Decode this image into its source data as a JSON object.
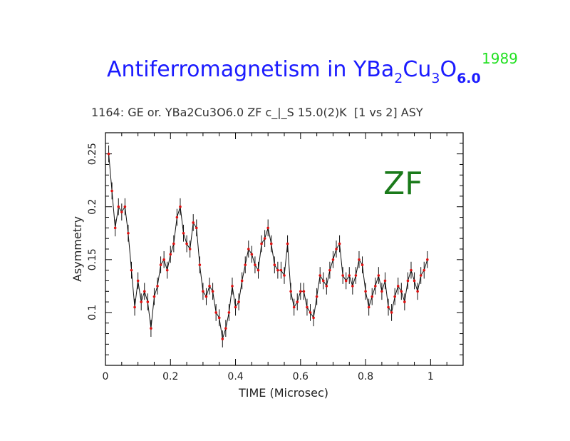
{
  "slide": {
    "title_main": "Antiferromagnetism in YBa",
    "title_sub1": "2",
    "title_mid1": "Cu",
    "title_sub2": "3",
    "title_mid2": "O",
    "title_sub3": "6.0",
    "year": "1989",
    "plot_header": "1164: GE or. YBa2Cu3O6.0 ZF c_|_S 15.0(2)K  [1 vs 2] ASY"
  },
  "colors": {
    "title": "#1b1bff",
    "year": "#22e022",
    "annotation": "#1a7a1a",
    "points": "#e01010",
    "line": "#111111"
  },
  "chart_data": {
    "type": "line",
    "xlabel": "TIME (Microsec)",
    "ylabel": "Asymmetry",
    "xlim": [
      0,
      1.1
    ],
    "ylim": [
      0.05,
      0.27
    ],
    "xticks": [
      0,
      0.2,
      0.4,
      0.6,
      0.8,
      1
    ],
    "xtick_labels": [
      "0",
      "0.2",
      "0.4",
      "0.6",
      "0.8",
      "1"
    ],
    "yticks": [
      0.1,
      0.15,
      0.2,
      0.25
    ],
    "ytick_labels": [
      "0.1",
      "0.15",
      "0.2",
      "0.25"
    ],
    "annotation": "ZF",
    "error_bar": 0.008,
    "series": [
      {
        "x": [
          0.01,
          0.02,
          0.03,
          0.04,
          0.05,
          0.06,
          0.07,
          0.08,
          0.09,
          0.1,
          0.11,
          0.12,
          0.13,
          0.14,
          0.15,
          0.16,
          0.17,
          0.18,
          0.19,
          0.2,
          0.21,
          0.22,
          0.23,
          0.24,
          0.25,
          0.26,
          0.27,
          0.28,
          0.29,
          0.3,
          0.31,
          0.32,
          0.33,
          0.34,
          0.35,
          0.36,
          0.37,
          0.38,
          0.39,
          0.4,
          0.41,
          0.42,
          0.43,
          0.44,
          0.45,
          0.46,
          0.47,
          0.48,
          0.49,
          0.5,
          0.51,
          0.52,
          0.53,
          0.54,
          0.55,
          0.56,
          0.57,
          0.58,
          0.59,
          0.6,
          0.61,
          0.62,
          0.63,
          0.64,
          0.65,
          0.66,
          0.67,
          0.68,
          0.69,
          0.7,
          0.71,
          0.72,
          0.73,
          0.74,
          0.75,
          0.76,
          0.77,
          0.78,
          0.79,
          0.8,
          0.81,
          0.82,
          0.83,
          0.84,
          0.85,
          0.86,
          0.87,
          0.88,
          0.89,
          0.9,
          0.91,
          0.92,
          0.93,
          0.94,
          0.95,
          0.96,
          0.97,
          0.98,
          0.99
        ],
        "y": [
          0.25,
          0.215,
          0.18,
          0.2,
          0.195,
          0.2,
          0.175,
          0.14,
          0.105,
          0.13,
          0.11,
          0.12,
          0.11,
          0.085,
          0.115,
          0.125,
          0.145,
          0.15,
          0.14,
          0.155,
          0.165,
          0.19,
          0.2,
          0.175,
          0.165,
          0.16,
          0.185,
          0.18,
          0.145,
          0.12,
          0.115,
          0.125,
          0.12,
          0.1,
          0.095,
          0.075,
          0.085,
          0.1,
          0.125,
          0.105,
          0.11,
          0.13,
          0.145,
          0.16,
          0.155,
          0.145,
          0.14,
          0.165,
          0.17,
          0.18,
          0.165,
          0.145,
          0.14,
          0.14,
          0.135,
          0.165,
          0.12,
          0.105,
          0.11,
          0.12,
          0.12,
          0.105,
          0.1,
          0.095,
          0.115,
          0.135,
          0.13,
          0.125,
          0.14,
          0.15,
          0.16,
          0.165,
          0.135,
          0.13,
          0.135,
          0.125,
          0.135,
          0.15,
          0.145,
          0.12,
          0.105,
          0.115,
          0.125,
          0.135,
          0.12,
          0.13,
          0.105,
          0.1,
          0.115,
          0.125,
          0.12,
          0.11,
          0.13,
          0.14,
          0.13,
          0.12,
          0.135,
          0.14,
          0.15
        ]
      }
    ]
  }
}
